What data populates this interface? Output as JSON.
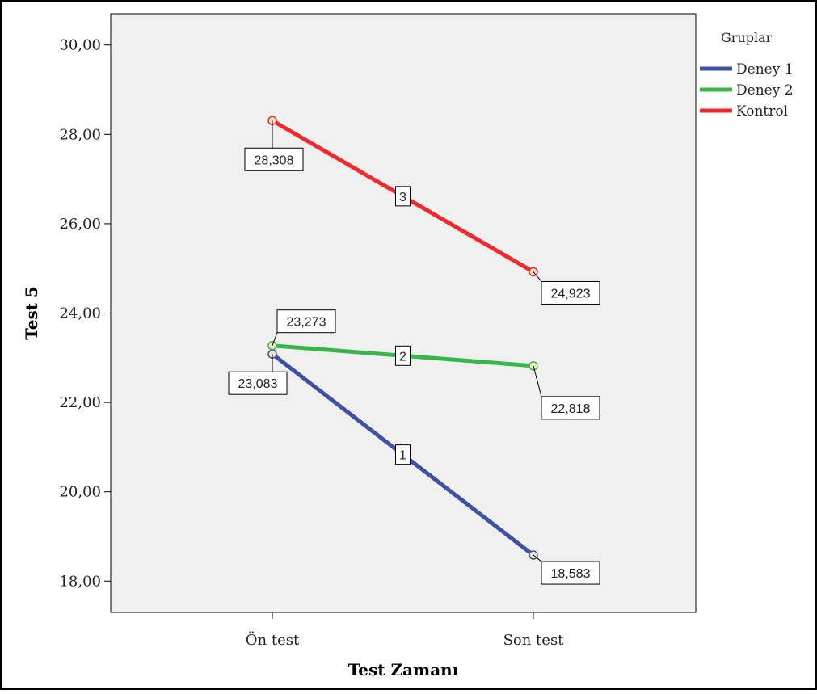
{
  "chart_data": {
    "type": "line",
    "title": "",
    "xlabel": "Test Zamanı",
    "ylabel": "Test 5",
    "categories": [
      "Ön test",
      "Son test"
    ],
    "ylim": [
      17.3,
      30.7
    ],
    "yticks": [
      18,
      20,
      22,
      24,
      26,
      28,
      30
    ],
    "ytick_labels": [
      "18,00",
      "20,00",
      "22,00",
      "24,00",
      "26,00",
      "28,00",
      "30,00"
    ],
    "grid": false,
    "legend": {
      "title": "Gruplar",
      "placement": "top-right-outside",
      "entries": [
        "Deney 1",
        "Deney 2",
        "Kontrol"
      ]
    },
    "series": [
      {
        "name": "Deney 1",
        "number": "1",
        "values": [
          23.083,
          18.583
        ],
        "labels": [
          "23,083",
          "18,583"
        ],
        "color": "#3d52a4"
      },
      {
        "name": "Deney 2",
        "number": "2",
        "values": [
          23.273,
          22.818
        ],
        "labels": [
          "23,273",
          "22,818"
        ],
        "color": "#39b54a"
      },
      {
        "name": "Kontrol",
        "number": "3",
        "values": [
          28.308,
          24.923
        ],
        "labels": [
          "28,308",
          "24,923"
        ],
        "color": "#ec2a2f"
      }
    ],
    "plot_background": "#f0f0f0"
  }
}
